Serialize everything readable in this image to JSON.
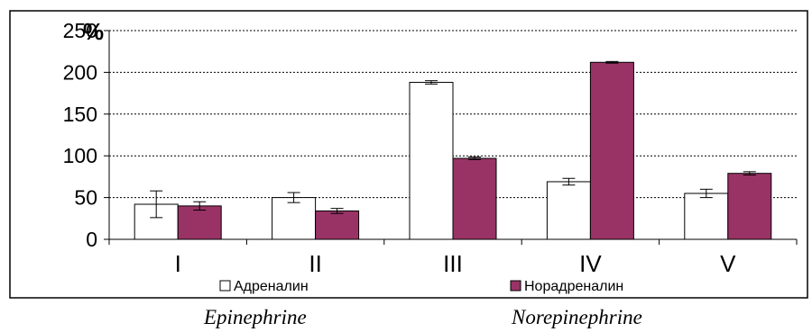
{
  "chart_data": {
    "type": "bar",
    "categories": [
      "I",
      "II",
      "III",
      "IV",
      "V"
    ],
    "series": [
      {
        "name": "Адреналин",
        "values": [
          42,
          50,
          188,
          69,
          55
        ],
        "errors": [
          16,
          6,
          2,
          4,
          5
        ],
        "color": "#ffffff"
      },
      {
        "name": "Норадреналин",
        "values": [
          40,
          34,
          97,
          212,
          79
        ],
        "errors": [
          5,
          3,
          1.5,
          1,
          2
        ],
        "color": "#993366"
      }
    ],
    "ylim": [
      0,
      250
    ],
    "yticks": [
      "0",
      "50",
      "100",
      "150",
      "200",
      "250"
    ],
    "unit_label": "%",
    "grid": "dotted horizontal",
    "legend": "bottom"
  },
  "captions": {
    "left": "Epinephrine",
    "right": "Norepinephrine"
  }
}
